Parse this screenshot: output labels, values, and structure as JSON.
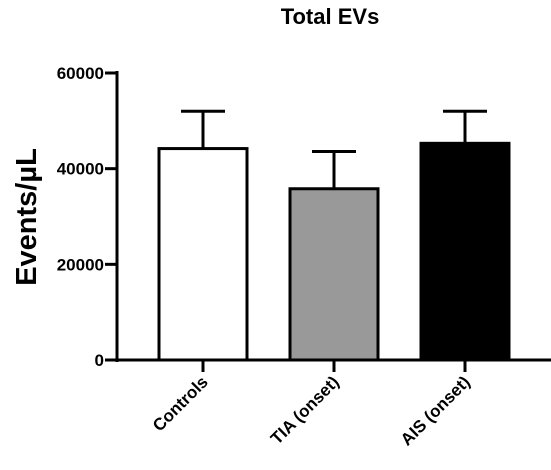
{
  "chart_data": {
    "type": "bar",
    "title": "Total EVs",
    "xlabel": "",
    "ylabel": "Events/µL",
    "categories": [
      "Controls",
      "TIA (onset)",
      "AIS (onset)"
    ],
    "values": [
      44200,
      35800,
      45300
    ],
    "error_upper": [
      52000,
      43600,
      52000
    ],
    "bar_colors": [
      "#ffffff",
      "#999999",
      "#000000"
    ],
    "yticks": [
      0,
      20000,
      40000,
      60000
    ],
    "ytick_labels": [
      "0",
      "20000",
      "40000",
      "60000"
    ],
    "ylim": [
      0,
      60000
    ],
    "grid": false,
    "legend": "none"
  }
}
